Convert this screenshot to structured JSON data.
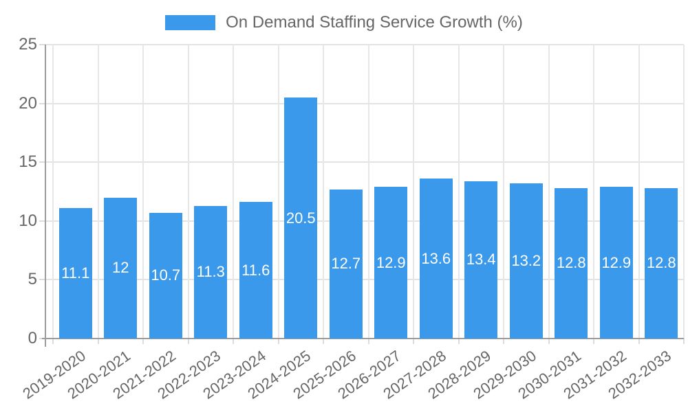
{
  "legend": {
    "label": "On Demand Staffing Service Growth (%)"
  },
  "chart_data": {
    "type": "bar",
    "title": "On Demand Staffing Service Growth (%)",
    "categories": [
      "2019-2020",
      "2020-2021",
      "2021-2022",
      "2022-2023",
      "2023-2024",
      "2024-2025",
      "2025-2026",
      "2026-2027",
      "2027-2028",
      "2028-2029",
      "2029-2030",
      "2030-2031",
      "2031-2032",
      "2032-2033"
    ],
    "values": [
      11.1,
      12,
      10.7,
      11.3,
      11.6,
      20.5,
      12.7,
      12.9,
      13.6,
      13.4,
      13.2,
      12.8,
      12.9,
      12.8
    ],
    "value_labels": [
      "11.1",
      "12",
      "10.7",
      "11.3",
      "11.6",
      "20.5",
      "12.7",
      "12.9",
      "13.6",
      "13.4",
      "13.2",
      "12.8",
      "12.9",
      "12.8"
    ],
    "xlabel": "",
    "ylabel": "",
    "ylim": [
      0,
      25
    ],
    "yticks": [
      0,
      5,
      10,
      15,
      20,
      25
    ],
    "grid": true,
    "legend_position": "top",
    "bar_color": "#3b99ec",
    "value_label_color": "#ffffff",
    "axis_text_color": "#666666",
    "grid_color": "#e3e3e3",
    "axis_line_color": "#9c9c9c"
  }
}
